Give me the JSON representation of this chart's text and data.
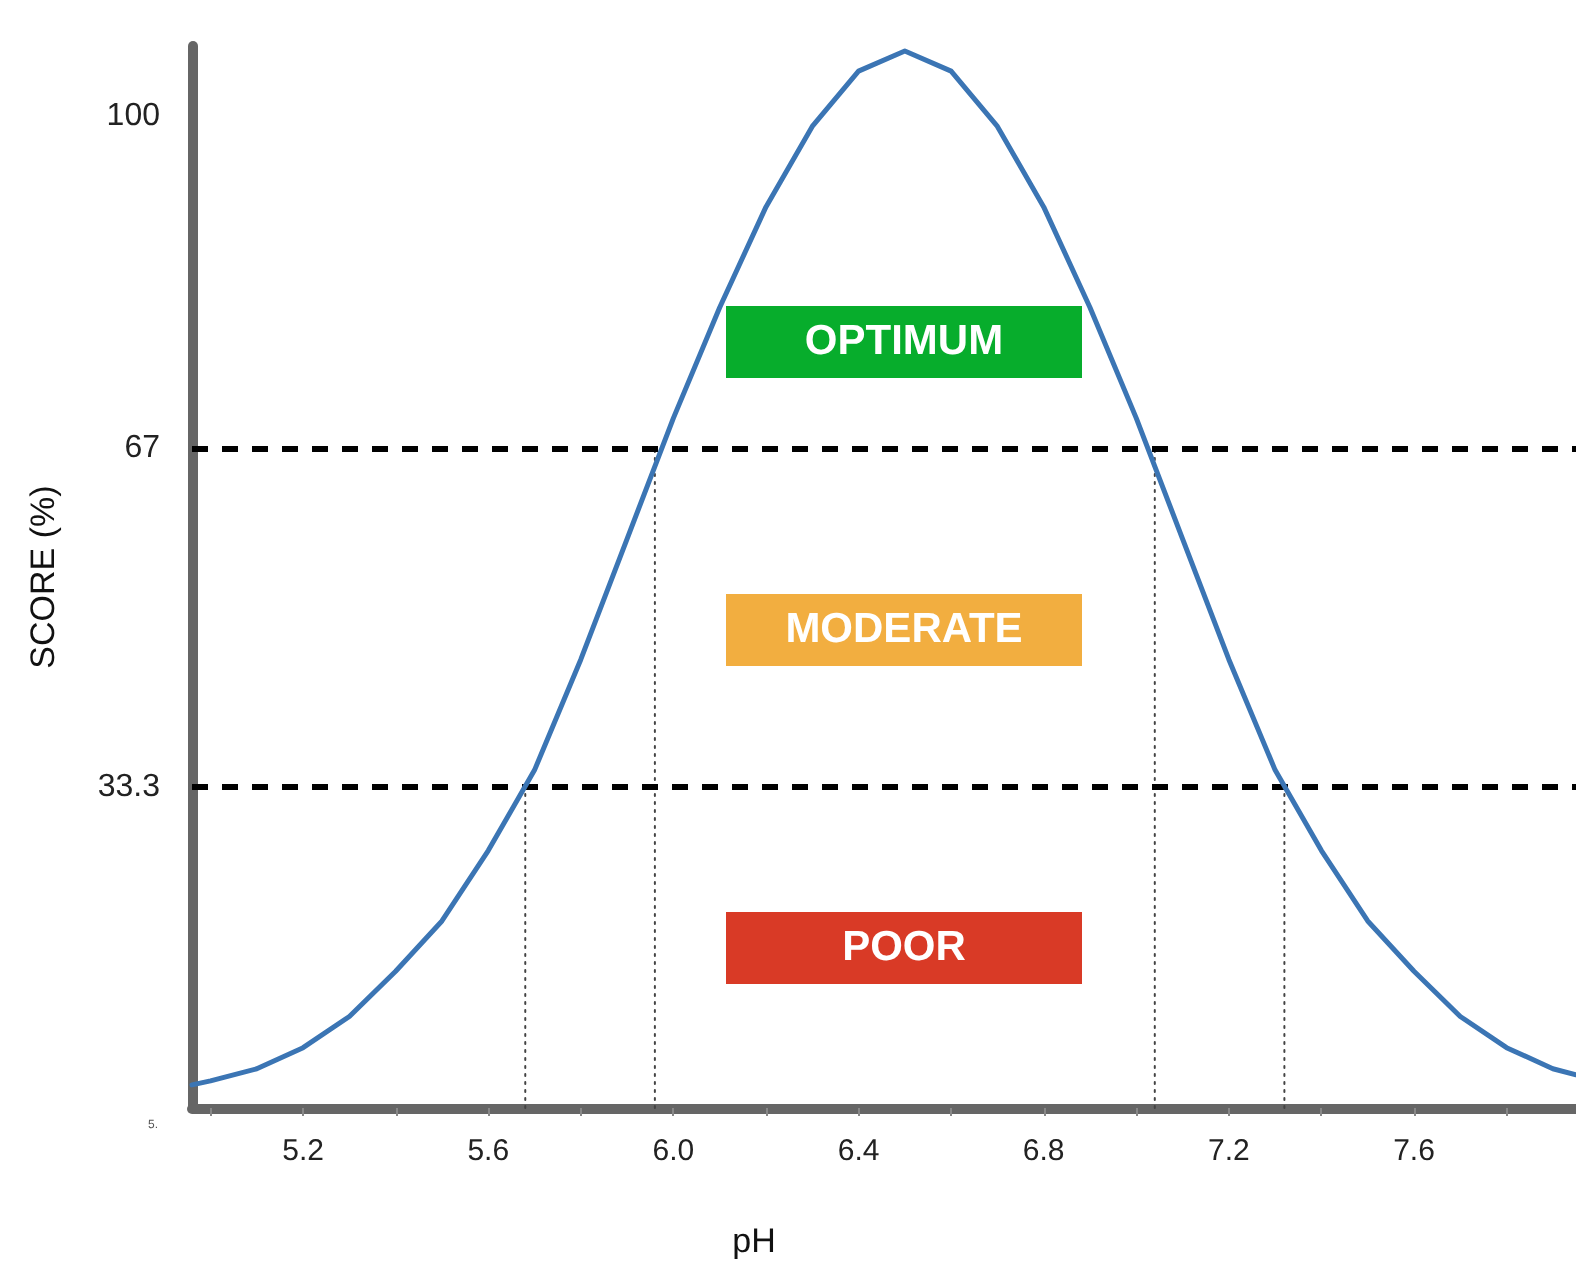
{
  "chart_data": {
    "type": "line",
    "xlabel": "pH",
    "ylabel": "SCORE (%)",
    "xlim": [
      4.96,
      7.95
    ],
    "ylim": [
      1.4,
      107
    ],
    "xticks": [
      {
        "value": 5.0,
        "label": null
      },
      5.2,
      {
        "value": 5.4,
        "label": null
      },
      5.6,
      {
        "value": 5.8,
        "label": null
      },
      {
        "value": 6,
        "label": "6.0"
      },
      {
        "value": 6.2,
        "label": null
      },
      6.4,
      {
        "value": 6.6,
        "label": null
      },
      6.8,
      {
        "value": 7.0,
        "label": null
      },
      7.2,
      {
        "value": 7.4,
        "label": null
      },
      7.6,
      {
        "value": 7.8,
        "label": null
      }
    ],
    "yticks": [
      33.3,
      67,
      100
    ],
    "grid": false,
    "marker": "none",
    "series": [
      {
        "color": "#3b75b4",
        "line_style": "solid",
        "x": [
          4.96,
          5.0,
          5.1,
          5.2,
          5.3,
          5.4,
          5.5,
          5.6,
          5.7,
          5.8,
          5.9,
          6.0,
          6.1,
          6.2,
          6.3,
          6.4,
          6.5,
          6.6,
          6.7,
          6.8,
          6.9,
          7.0,
          7.1,
          7.2,
          7.3,
          7.4,
          7.5,
          7.6,
          7.7,
          7.8,
          7.9,
          7.95
        ],
        "values": [
          3.7,
          4.1,
          5.3,
          7.4,
          10.5,
          15,
          20,
          27,
          35,
          46,
          58,
          70,
          81,
          91,
          99,
          104.5,
          106.5,
          104.5,
          99,
          91,
          81,
          70,
          58,
          46,
          35,
          27,
          20,
          15,
          10.5,
          7.4,
          5.3,
          4.7
        ]
      },
      {
        "type": "line",
        "color": "#444444",
        "line_style": "dotted",
        "x": [
          5.68,
          5.68
        ],
        "values": [
          1.4,
          33.3
        ]
      },
      {
        "type": "line",
        "color": "#444444",
        "line_style": "dotted",
        "x": [
          5.96,
          5.96
        ],
        "values": [
          1.4,
          67
        ]
      },
      {
        "type": "line",
        "color": "#444444",
        "line_style": "dotted",
        "x": [
          7.04,
          7.04
        ],
        "values": [
          1.4,
          67
        ]
      },
      {
        "type": "line",
        "color": "#444444",
        "line_style": "dotted",
        "x": [
          7.32,
          7.32
        ],
        "values": [
          1.4,
          33.3
        ]
      }
    ],
    "ref_lines": [
      {
        "axis": "y",
        "value": 67,
        "color": "#000000",
        "line_style": "dashed"
      },
      {
        "axis": "y",
        "value": 33.3,
        "color": "#000000",
        "line_style": "dashed"
      }
    ],
    "annotations": [
      "OPTIMUM",
      "MODERATE",
      "POOR",
      "5."
    ]
  }
}
